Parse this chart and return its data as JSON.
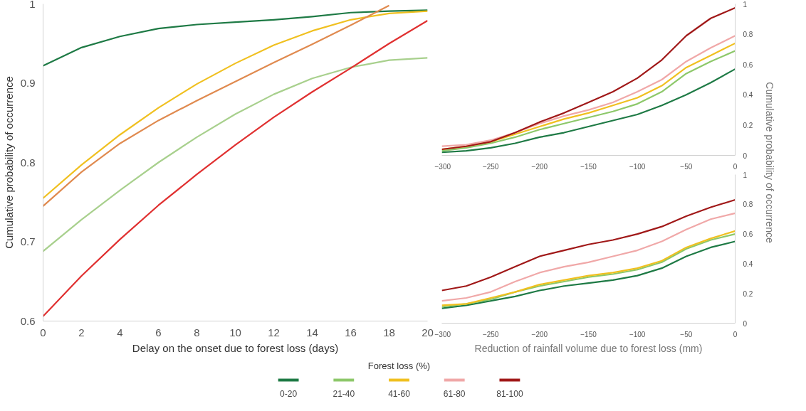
{
  "chart_data": [
    {
      "type": "line",
      "xlabel": "Delay on the onset due to forest loss (days)",
      "ylabel": "Cumulative probability of occurrence",
      "x": [
        0,
        2,
        4,
        6,
        8,
        10,
        12,
        14,
        16,
        18,
        20
      ],
      "xlim": [
        0,
        20
      ],
      "xticks": [
        0,
        2,
        4,
        6,
        8,
        10,
        12,
        14,
        16,
        18,
        20
      ],
      "ylim": [
        0.6,
        1
      ],
      "yticks": [
        0.6,
        0.7,
        0.8,
        0.9,
        1
      ],
      "grid": false,
      "series": [
        {
          "color": "#1e7a45",
          "values": [
            0.922,
            0.945,
            0.959,
            0.969,
            0.974,
            0.977,
            0.98,
            0.984,
            0.989,
            0.991,
            0.992
          ]
        },
        {
          "color": "#a8d08d",
          "values": [
            0.688,
            0.728,
            0.765,
            0.8,
            0.832,
            0.861,
            0.886,
            0.906,
            0.92,
            0.929,
            0.932
          ]
        },
        {
          "color": "#f0c020",
          "values": [
            0.755,
            0.797,
            0.835,
            0.869,
            0.899,
            0.925,
            0.948,
            0.966,
            0.98,
            0.988,
            0.991
          ]
        },
        {
          "color": "#e08a4f",
          "values": [
            0.745,
            0.788,
            0.824,
            0.853,
            0.878,
            0.902,
            0.926,
            0.949,
            0.973,
            0.998,
            null
          ]
        },
        {
          "color": "#e03030",
          "values": [
            0.606,
            0.657,
            0.703,
            0.746,
            0.785,
            0.822,
            0.857,
            0.889,
            0.919,
            0.95,
            0.979
          ]
        }
      ]
    },
    {
      "type": "line",
      "ylabel": "Cumulative probability of occurrence",
      "legend_title": "Forest loss (%)",
      "legend": "bottom",
      "x": [
        -300,
        -275,
        -250,
        -225,
        -200,
        -175,
        -150,
        -125,
        -100,
        -75,
        -50,
        -25,
        0
      ],
      "xlim": [
        -300,
        0
      ],
      "xticks": [
        -300,
        -250,
        -200,
        -150,
        -100,
        -50,
        0
      ],
      "ylim": [
        0,
        1
      ],
      "yticks": [
        0,
        0.2,
        0.4,
        0.6,
        0.8,
        1
      ],
      "grid": false,
      "series": [
        {
          "name": "0-20",
          "color": "#1e7a45",
          "values": [
            0.02,
            0.03,
            0.05,
            0.08,
            0.12,
            0.15,
            0.19,
            0.23,
            0.27,
            0.33,
            0.4,
            0.48,
            0.57
          ]
        },
        {
          "name": "21-40",
          "color": "#8dc86a",
          "values": [
            0.03,
            0.05,
            0.08,
            0.12,
            0.17,
            0.21,
            0.25,
            0.29,
            0.34,
            0.42,
            0.54,
            0.62,
            0.69
          ]
        },
        {
          "name": "41-60",
          "color": "#f0c020",
          "values": [
            0.04,
            0.06,
            0.09,
            0.14,
            0.19,
            0.24,
            0.28,
            0.33,
            0.38,
            0.46,
            0.58,
            0.66,
            0.74
          ]
        },
        {
          "name": "61-80",
          "color": "#f0a8a8",
          "values": [
            0.06,
            0.07,
            0.1,
            0.15,
            0.21,
            0.26,
            0.3,
            0.35,
            0.42,
            0.5,
            0.62,
            0.71,
            0.79
          ]
        },
        {
          "name": "81-100",
          "color": "#a01818",
          "values": [
            0.04,
            0.06,
            0.09,
            0.15,
            0.22,
            0.28,
            0.35,
            0.42,
            0.51,
            0.63,
            0.79,
            0.905,
            0.974
          ]
        }
      ]
    },
    {
      "type": "line",
      "xlabel": "Reduction of rainfall volume due to forest loss (mm)",
      "x": [
        -300,
        -275,
        -250,
        -225,
        -200,
        -175,
        -150,
        -125,
        -100,
        -75,
        -50,
        -25,
        0
      ],
      "xlim": [
        -300,
        0
      ],
      "xticks": [
        -300,
        -250,
        -200,
        -150,
        -100,
        -50,
        0
      ],
      "ylim": [
        0,
        1
      ],
      "yticks": [
        0,
        0.2,
        0.4,
        0.6,
        0.8,
        1
      ],
      "grid": false,
      "series": [
        {
          "color": "#1e7a45",
          "values": [
            0.1,
            0.12,
            0.15,
            0.18,
            0.22,
            0.25,
            0.27,
            0.29,
            0.32,
            0.37,
            0.45,
            0.51,
            0.55
          ]
        },
        {
          "color": "#8dc86a",
          "values": [
            0.11,
            0.13,
            0.16,
            0.21,
            0.25,
            0.28,
            0.31,
            0.33,
            0.36,
            0.41,
            0.5,
            0.56,
            0.6
          ]
        },
        {
          "color": "#f0c020",
          "values": [
            0.12,
            0.13,
            0.17,
            0.21,
            0.26,
            0.29,
            0.32,
            0.34,
            0.37,
            0.42,
            0.51,
            0.57,
            0.62
          ]
        },
        {
          "color": "#f0a8a8",
          "values": [
            0.15,
            0.17,
            0.21,
            0.28,
            0.34,
            0.38,
            0.41,
            0.45,
            0.49,
            0.55,
            0.63,
            0.7,
            0.74
          ]
        },
        {
          "color": "#a01818",
          "values": [
            0.22,
            0.25,
            0.31,
            0.38,
            0.45,
            0.49,
            0.53,
            0.56,
            0.6,
            0.65,
            0.72,
            0.78,
            0.83
          ]
        }
      ]
    }
  ]
}
